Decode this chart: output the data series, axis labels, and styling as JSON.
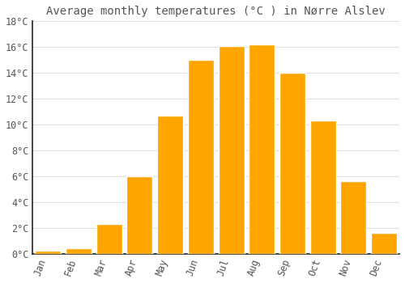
{
  "title": "Average monthly temperatures (°C ) in Nørre Alslev",
  "months": [
    "Jan",
    "Feb",
    "Mar",
    "Apr",
    "May",
    "Jun",
    "Jul",
    "Aug",
    "Sep",
    "Oct",
    "Nov",
    "Dec"
  ],
  "values": [
    0.2,
    0.4,
    2.3,
    6.0,
    10.7,
    15.0,
    16.1,
    16.2,
    14.0,
    10.3,
    5.6,
    1.6
  ],
  "bar_color": "#FFA500",
  "bar_edge_color": "#FFFFFF",
  "background_color": "#FFFFFF",
  "plot_bg_color": "#FFFFFF",
  "grid_color": "#DDDDDD",
  "text_color": "#555555",
  "spine_color": "#222222",
  "ylim": [
    0,
    18
  ],
  "yticks": [
    0,
    2,
    4,
    6,
    8,
    10,
    12,
    14,
    16,
    18
  ],
  "title_fontsize": 10,
  "tick_fontsize": 8.5,
  "font_family": "monospace",
  "bar_width": 0.85
}
